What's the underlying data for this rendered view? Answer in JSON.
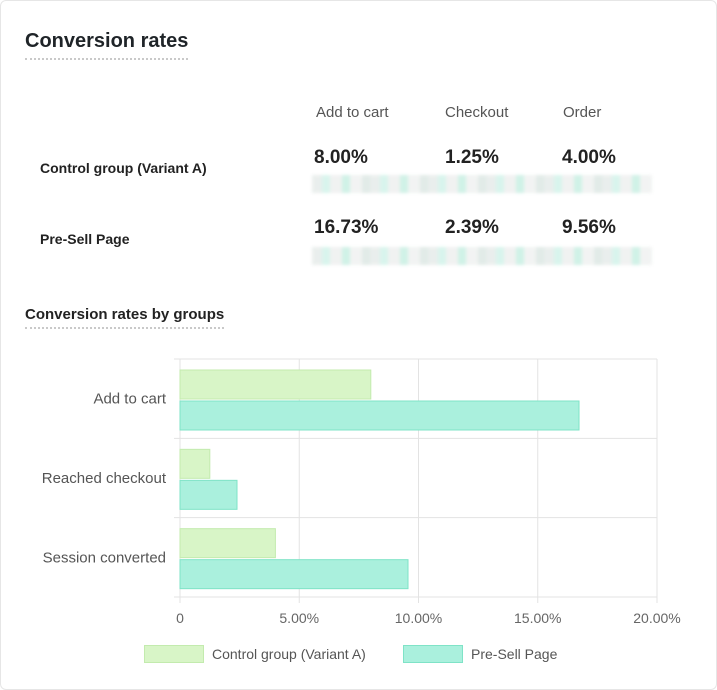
{
  "card": {
    "title": "Conversion rates",
    "columns": [
      "Add to cart",
      "Checkout",
      "Order"
    ],
    "rows": [
      {
        "label": "Control group (Variant A)",
        "values": [
          "8.00%",
          "1.25%",
          "4.00%"
        ]
      },
      {
        "label": "Pre-Sell Page",
        "values": [
          "16.73%",
          "2.39%",
          "9.56%"
        ]
      }
    ],
    "chart_title": "Conversion rates by groups"
  },
  "colors": {
    "control_fill": "#d8f5c7",
    "control_stroke": "#c3ebae",
    "presell_fill": "#aaf0dd",
    "presell_stroke": "#7fe3c7",
    "grid": "#e3e3e3"
  },
  "chart_data": {
    "type": "bar",
    "orientation": "horizontal",
    "categories": [
      "Add to cart",
      "Reached checkout",
      "Session converted"
    ],
    "series": [
      {
        "name": "Control group (Variant A)",
        "values": [
          8.0,
          1.25,
          4.0
        ]
      },
      {
        "name": "Pre-Sell Page",
        "values": [
          16.73,
          2.39,
          9.56
        ]
      }
    ],
    "xlim": [
      0,
      20
    ],
    "xticks": [
      "0",
      "5.00%",
      "10.00%",
      "15.00%",
      "20.00%"
    ],
    "grid": true,
    "legend_position": "bottom"
  }
}
